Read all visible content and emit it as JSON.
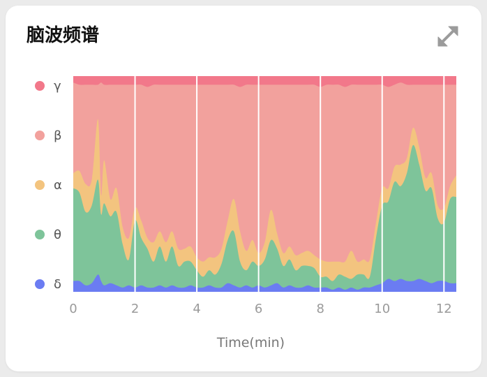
{
  "card": {
    "title": "脑波频谱",
    "expand_icon": "expand-arrows-icon"
  },
  "chart_data": {
    "type": "area",
    "stacked": true,
    "normalized": true,
    "title": "脑波频谱",
    "xlabel": "Time(min)",
    "ylabel": "",
    "xlim": [
      0,
      12.4
    ],
    "ylim": [
      0,
      1
    ],
    "x_ticks": [
      0,
      2,
      4,
      6,
      8,
      10,
      12
    ],
    "x_tick_labels": [
      "0",
      "2",
      "4",
      "6",
      "8",
      "10",
      "12"
    ],
    "vertical_gridlines": true,
    "legend_placement": "left",
    "x": [
      0,
      0.2,
      0.4,
      0.6,
      0.8,
      0.9,
      1.0,
      1.2,
      1.4,
      1.6,
      1.8,
      2.0,
      2.2,
      2.4,
      2.6,
      2.8,
      3.0,
      3.2,
      3.4,
      3.6,
      3.8,
      4.0,
      4.2,
      4.4,
      4.6,
      4.8,
      5.0,
      5.2,
      5.4,
      5.6,
      5.8,
      6.0,
      6.2,
      6.4,
      6.6,
      6.8,
      7.0,
      7.2,
      7.4,
      7.6,
      7.8,
      8.0,
      8.2,
      8.4,
      8.6,
      8.8,
      9.0,
      9.2,
      9.4,
      9.6,
      9.8,
      10.0,
      10.2,
      10.4,
      10.6,
      10.8,
      11.0,
      11.2,
      11.4,
      11.6,
      11.8,
      12.0,
      12.2,
      12.4
    ],
    "series": [
      {
        "name": "δ",
        "color": "#6b7cf2",
        "values": [
          0.05,
          0.05,
          0.03,
          0.04,
          0.08,
          0.05,
          0.03,
          0.04,
          0.03,
          0.02,
          0.03,
          0.02,
          0.03,
          0.02,
          0.02,
          0.03,
          0.02,
          0.03,
          0.02,
          0.02,
          0.03,
          0.02,
          0.02,
          0.03,
          0.02,
          0.02,
          0.04,
          0.03,
          0.02,
          0.03,
          0.02,
          0.03,
          0.02,
          0.03,
          0.04,
          0.02,
          0.03,
          0.02,
          0.02,
          0.03,
          0.02,
          0.02,
          0.02,
          0.01,
          0.02,
          0.01,
          0.02,
          0.01,
          0.02,
          0.02,
          0.03,
          0.04,
          0.06,
          0.05,
          0.06,
          0.05,
          0.05,
          0.06,
          0.05,
          0.04,
          0.05,
          0.05,
          0.04,
          0.04
        ]
      },
      {
        "name": "θ",
        "color": "#7ec49a",
        "values": [
          0.43,
          0.41,
          0.34,
          0.36,
          0.44,
          0.31,
          0.38,
          0.31,
          0.34,
          0.2,
          0.12,
          0.31,
          0.22,
          0.18,
          0.12,
          0.18,
          0.12,
          0.18,
          0.1,
          0.12,
          0.11,
          0.08,
          0.05,
          0.07,
          0.06,
          0.11,
          0.2,
          0.25,
          0.12,
          0.07,
          0.12,
          0.09,
          0.13,
          0.21,
          0.16,
          0.1,
          0.12,
          0.08,
          0.1,
          0.09,
          0.09,
          0.05,
          0.05,
          0.04,
          0.06,
          0.06,
          0.04,
          0.07,
          0.06,
          0.05,
          0.22,
          0.36,
          0.36,
          0.46,
          0.43,
          0.5,
          0.63,
          0.53,
          0.42,
          0.44,
          0.29,
          0.27,
          0.39,
          0.4
        ]
      },
      {
        "name": "α",
        "color": "#f3c47f",
        "values": [
          0.07,
          0.1,
          0.13,
          0.12,
          0.28,
          0.09,
          0.2,
          0.08,
          0.11,
          0.08,
          0.1,
          0.06,
          0.08,
          0.05,
          0.09,
          0.07,
          0.09,
          0.07,
          0.08,
          0.06,
          0.07,
          0.06,
          0.07,
          0.06,
          0.08,
          0.07,
          0.09,
          0.15,
          0.14,
          0.09,
          0.1,
          0.06,
          0.08,
          0.14,
          0.07,
          0.06,
          0.06,
          0.07,
          0.06,
          0.07,
          0.06,
          0.08,
          0.07,
          0.09,
          0.06,
          0.07,
          0.13,
          0.06,
          0.07,
          0.08,
          0.07,
          0.08,
          0.06,
          0.07,
          0.1,
          0.07,
          0.08,
          0.08,
          0.06,
          0.07,
          0.06,
          0.07,
          0.06,
          0.1
        ]
      },
      {
        "name": "β",
        "color": "#f2a19d",
        "values": [
          0.42,
          0.4,
          0.46,
          0.44,
          0.16,
          0.52,
          0.35,
          0.53,
          0.48,
          0.66,
          0.71,
          0.57,
          0.63,
          0.7,
          0.73,
          0.68,
          0.73,
          0.68,
          0.76,
          0.76,
          0.75,
          0.8,
          0.82,
          0.8,
          0.8,
          0.76,
          0.63,
          0.53,
          0.67,
          0.77,
          0.72,
          0.78,
          0.73,
          0.58,
          0.69,
          0.78,
          0.75,
          0.79,
          0.78,
          0.77,
          0.79,
          0.8,
          0.82,
          0.82,
          0.82,
          0.81,
          0.77,
          0.82,
          0.81,
          0.81,
          0.64,
          0.48,
          0.47,
          0.38,
          0.38,
          0.34,
          0.2,
          0.29,
          0.43,
          0.41,
          0.56,
          0.57,
          0.47,
          0.42
        ]
      },
      {
        "name": "γ",
        "color": "#f2788a",
        "values": [
          0.03,
          0.04,
          0.04,
          0.04,
          0.04,
          0.03,
          0.04,
          0.04,
          0.04,
          0.04,
          0.04,
          0.04,
          0.04,
          0.05,
          0.04,
          0.04,
          0.04,
          0.04,
          0.04,
          0.04,
          0.04,
          0.04,
          0.04,
          0.04,
          0.04,
          0.04,
          0.04,
          0.04,
          0.05,
          0.04,
          0.04,
          0.04,
          0.04,
          0.04,
          0.04,
          0.04,
          0.04,
          0.04,
          0.04,
          0.04,
          0.04,
          0.05,
          0.04,
          0.04,
          0.04,
          0.05,
          0.04,
          0.04,
          0.04,
          0.04,
          0.04,
          0.04,
          0.05,
          0.04,
          0.03,
          0.04,
          0.04,
          0.04,
          0.04,
          0.04,
          0.04,
          0.04,
          0.04,
          0.04
        ]
      }
    ]
  }
}
